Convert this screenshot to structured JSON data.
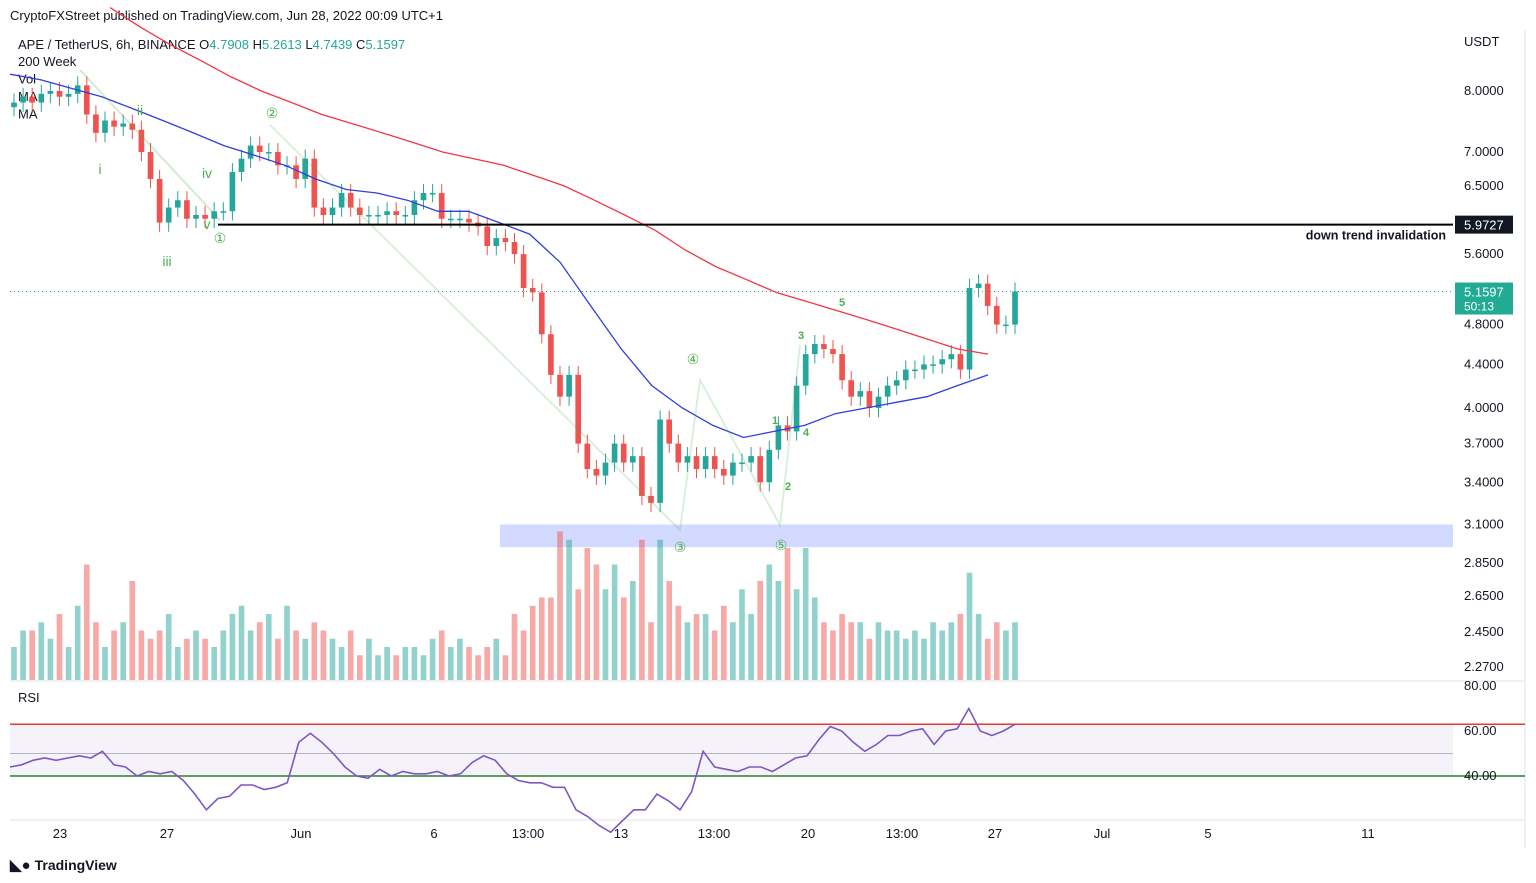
{
  "header": {
    "published": "CryptoFXStreet published on TradingView.com, Jun 28, 2022 00:09 UTC+1",
    "symbol": "APE / TetherUS, 6h, BINANCE",
    "o_label": "O",
    "o_value": "4.7908",
    "h_label": "H",
    "h_value": "5.2613",
    "l_label": "L",
    "l_value": "4.7439",
    "c_label": "C",
    "c_value": "5.1597",
    "indicators": [
      "200 Week",
      "Vol",
      "MA",
      "MA"
    ]
  },
  "footer": {
    "brand": "TradingView"
  },
  "colors": {
    "up": "#26a69a",
    "down": "#ef5350",
    "ma_slow": "#f23645",
    "ma_fast": "#2f3fdc",
    "wave": "#4caf50",
    "rsi": "#7e57c2",
    "zone": "#aebcff",
    "current": "#22ab94"
  },
  "chart_data": {
    "type": "candlestick",
    "currency": "USDT",
    "price_axis_ticks": [
      "8.0000",
      "7.0000",
      "6.5000",
      "5.6000",
      "4.8000",
      "4.4000",
      "4.0000",
      "3.7000",
      "3.4000",
      "3.1000",
      "2.8500",
      "2.6500",
      "2.4500",
      "2.2700"
    ],
    "x_axis_ticks": [
      "23",
      "27",
      "Jun",
      "6",
      "13:00",
      "13",
      "13:00",
      "20",
      "13:00",
      "27",
      "Jul",
      "5",
      "11"
    ],
    "horizontal_line": {
      "price": "5.9727",
      "label": "down trend invalidation"
    },
    "current_price": {
      "price": "5.1597",
      "countdown": "50:13"
    },
    "support_zone": {
      "low": 2.95,
      "high": 3.1
    },
    "wave_labels": [
      "i",
      "ii",
      "iii",
      "iv",
      "v",
      "①",
      "②",
      "③",
      "④",
      "⑤",
      "1",
      "2",
      "3",
      "4",
      "5"
    ],
    "closes": [
      7.8,
      7.9,
      7.8,
      7.95,
      8.0,
      7.9,
      7.95,
      8.1,
      7.6,
      7.3,
      7.5,
      7.4,
      7.45,
      7.35,
      7.0,
      6.6,
      6.0,
      6.2,
      6.3,
      6.05,
      6.1,
      6.05,
      6.15,
      6.15,
      6.7,
      6.9,
      7.1,
      7.0,
      7.0,
      6.8,
      6.8,
      6.6,
      6.9,
      6.2,
      6.1,
      6.2,
      6.4,
      6.2,
      6.1,
      6.1,
      6.1,
      6.15,
      6.1,
      6.1,
      6.3,
      6.4,
      6.4,
      6.05,
      6.05,
      6.05,
      6.0,
      5.95,
      5.7,
      5.8,
      5.75,
      5.6,
      5.2,
      5.15,
      4.7,
      4.3,
      4.1,
      4.3,
      3.7,
      3.5,
      3.45,
      3.55,
      3.7,
      3.55,
      3.6,
      3.3,
      3.25,
      3.9,
      3.7,
      3.55,
      3.6,
      3.5,
      3.6,
      3.5,
      3.45,
      3.55,
      3.55,
      3.6,
      3.4,
      3.65,
      3.85,
      3.8,
      4.2,
      4.5,
      4.6,
      4.55,
      4.5,
      4.25,
      4.1,
      4.15,
      4.0,
      4.1,
      4.2,
      4.25,
      4.35,
      4.35,
      4.4,
      4.4,
      4.45,
      4.5,
      4.35,
      5.2,
      5.25,
      5.0,
      4.8,
      4.8,
      5.16
    ],
    "volume": [
      0.2,
      0.3,
      0.3,
      0.35,
      0.25,
      0.4,
      0.2,
      0.45,
      0.7,
      0.35,
      0.2,
      0.3,
      0.35,
      0.6,
      0.3,
      0.25,
      0.3,
      0.4,
      0.2,
      0.25,
      0.3,
      0.25,
      0.2,
      0.3,
      0.4,
      0.45,
      0.3,
      0.35,
      0.4,
      0.25,
      0.45,
      0.3,
      0.25,
      0.35,
      0.3,
      0.25,
      0.2,
      0.3,
      0.15,
      0.25,
      0.15,
      0.2,
      0.15,
      0.2,
      0.2,
      0.15,
      0.25,
      0.3,
      0.2,
      0.25,
      0.2,
      0.15,
      0.2,
      0.25,
      0.15,
      0.4,
      0.3,
      0.45,
      0.5,
      0.5,
      0.9,
      0.85,
      0.55,
      0.8,
      0.7,
      0.55,
      0.7,
      0.5,
      0.6,
      0.85,
      0.35,
      0.85,
      0.6,
      0.45,
      0.35,
      0.4,
      0.4,
      0.3,
      0.45,
      0.35,
      0.55,
      0.4,
      0.6,
      0.7,
      0.6,
      0.8,
      0.55,
      0.8,
      0.5,
      0.35,
      0.3,
      0.4,
      0.35,
      0.35,
      0.25,
      0.35,
      0.3,
      0.3,
      0.25,
      0.3,
      0.25,
      0.35,
      0.3,
      0.35,
      0.4,
      0.65,
      0.4,
      0.25,
      0.35,
      0.3,
      0.35
    ],
    "ma_fast": [
      8.3,
      8.2,
      8.05,
      7.9,
      7.7,
      7.5,
      7.3,
      7.1,
      6.95,
      6.8,
      6.6,
      6.45,
      6.4,
      6.3,
      6.15,
      6.15,
      6.0,
      5.85,
      5.5,
      5.0,
      4.55,
      4.2,
      4.0,
      3.85,
      3.75,
      3.8,
      3.85,
      3.95,
      4.0,
      4.05,
      4.1,
      4.2,
      4.3
    ],
    "ma_slow": [
      9.6,
      9.2,
      8.85,
      8.55,
      8.25,
      8.0,
      7.8,
      7.6,
      7.45,
      7.3,
      7.15,
      7.0,
      6.9,
      6.8,
      6.65,
      6.5,
      6.3,
      6.1,
      5.9,
      5.65,
      5.45,
      5.3,
      5.15,
      5.05,
      4.95,
      4.85,
      4.75,
      4.65,
      4.55,
      4.5
    ],
    "rsi": {
      "label": "RSI",
      "ticks": [
        "80.00",
        "60.00",
        "40.00"
      ],
      "upper_band": 63,
      "lower_band": 40,
      "values": [
        44,
        45,
        47,
        48,
        47,
        48,
        49,
        48,
        51,
        45,
        44,
        40,
        42,
        41,
        42,
        38,
        32,
        25,
        30,
        31,
        36,
        36,
        34,
        35,
        37,
        55,
        59,
        55,
        50,
        44,
        40,
        39,
        43,
        40,
        42,
        41,
        41,
        42,
        40,
        41,
        46,
        49,
        47,
        41,
        38,
        37,
        37,
        35,
        35,
        25,
        22,
        18,
        15,
        20,
        25,
        25,
        32,
        29,
        25,
        33,
        51,
        44,
        43,
        42,
        44,
        44,
        42,
        45,
        48,
        49,
        56,
        62,
        60,
        55,
        51,
        54,
        58,
        58,
        60,
        61,
        54,
        60,
        61,
        70,
        60,
        58,
        60,
        63
      ]
    }
  }
}
